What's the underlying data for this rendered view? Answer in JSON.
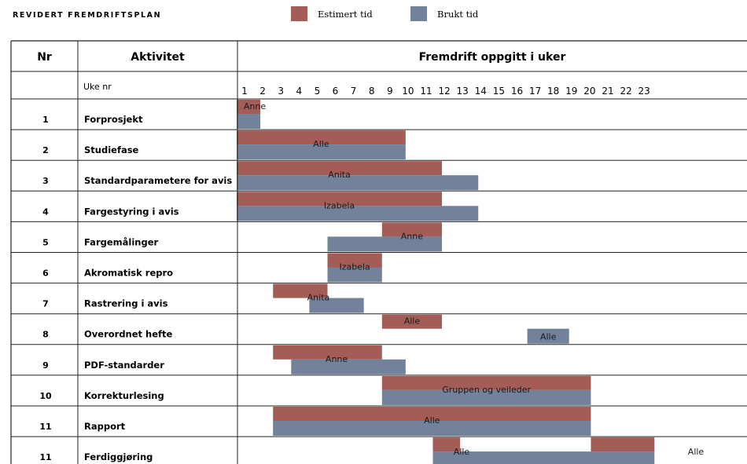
{
  "title": "REVIDERT FREMDRIFTSPLAN",
  "legend": {
    "estimated": {
      "label": "Estimert tid",
      "color": "#a45c57"
    },
    "spent": {
      "label": "Brukt tid",
      "color": "#71829a"
    }
  },
  "table": {
    "col_nr": "Nr",
    "col_activity": "Aktivitet",
    "col_progress": "Fremdrift oppgitt i uker",
    "week_label": "Uke nr"
  },
  "chart_data": {
    "type": "gantt",
    "weeks": [
      1,
      2,
      3,
      4,
      5,
      6,
      7,
      8,
      9,
      10,
      11,
      12,
      13,
      14,
      15,
      16,
      17,
      18,
      19,
      20,
      21,
      22,
      23
    ],
    "tasks": [
      {
        "nr": "1",
        "activity": "Forprosjekt",
        "estimated": [
          {
            "start": 1,
            "end": 2.3,
            "label": "Anne"
          }
        ],
        "spent": [
          {
            "start": 1,
            "end": 2.3
          }
        ]
      },
      {
        "nr": "2",
        "activity": "Studiefase",
        "estimated": [
          {
            "start": 1,
            "end": 10.3
          }
        ],
        "spent": [
          {
            "start": 1,
            "end": 10.3
          }
        ],
        "label": "Alle"
      },
      {
        "nr": "3",
        "activity": "Standardparametere for avis",
        "estimated": [
          {
            "start": 1,
            "end": 12.3
          }
        ],
        "spent": [
          {
            "start": 1,
            "end": 14.3
          }
        ],
        "label": "Anita"
      },
      {
        "nr": "4",
        "activity": "Fargestyring i avis",
        "estimated": [
          {
            "start": 1,
            "end": 12.3
          }
        ],
        "spent": [
          {
            "start": 1,
            "end": 14.3
          }
        ],
        "label": "Izabela"
      },
      {
        "nr": "5",
        "activity": "Fargemålinger",
        "estimated": [
          {
            "start": 9,
            "end": 12.3
          }
        ],
        "spent": [
          {
            "start": 6,
            "end": 12.3
          }
        ],
        "label": "Anne"
      },
      {
        "nr": "6",
        "activity": "Akromatisk repro",
        "estimated": [
          {
            "start": 6,
            "end": 9
          }
        ],
        "spent": [
          {
            "start": 6,
            "end": 9
          }
        ],
        "label": "Izabela"
      },
      {
        "nr": "7",
        "activity": "Rastrering i avis",
        "estimated": [
          {
            "start": 3,
            "end": 6
          }
        ],
        "spent": [
          {
            "start": 5,
            "end": 8
          }
        ],
        "label": "Anita"
      },
      {
        "nr": "8",
        "activity": "Overordnet hefte",
        "estimated": [
          {
            "start": 9,
            "end": 12.3,
            "label": "Alle"
          }
        ],
        "spent": [
          {
            "start": 17,
            "end": 19.3,
            "label": "Alle"
          }
        ]
      },
      {
        "nr": "9",
        "activity": "PDF-standarder",
        "estimated": [
          {
            "start": 3,
            "end": 9
          }
        ],
        "spent": [
          {
            "start": 4,
            "end": 10.3
          }
        ],
        "label": "Anne"
      },
      {
        "nr": "10",
        "activity": "Korrekturlesing",
        "estimated": [
          {
            "start": 9,
            "end": 20.5
          }
        ],
        "spent": [
          {
            "start": 9,
            "end": 20.5
          }
        ],
        "label": "Gruppen og veileder"
      },
      {
        "nr": "11",
        "activity": "Rapport",
        "estimated": [
          {
            "start": 3,
            "end": 20.5
          }
        ],
        "spent": [
          {
            "start": 3,
            "end": 20.5
          }
        ],
        "label": "Alle"
      },
      {
        "nr": "11",
        "activity": "Ferdiggjøring",
        "estimated": [
          {
            "start": 11.8,
            "end": 13.3
          },
          {
            "start": 20.5,
            "end": 24
          }
        ],
        "spent": [
          {
            "start": 11.8,
            "end": 24
          }
        ],
        "label_estimated_first": "Alle",
        "label_spent_second": "Alle"
      }
    ]
  }
}
